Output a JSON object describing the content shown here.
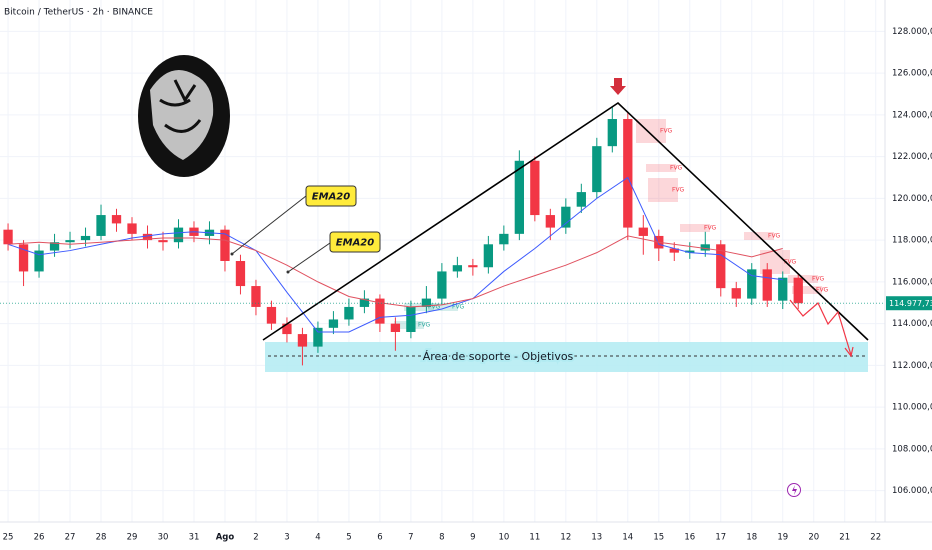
{
  "chart_data": {
    "type": "candlestick",
    "title": "Bitcoin / TetherUS · 2h · BINANCE",
    "x": [
      0,
      0.5,
      1,
      1.5,
      2,
      2.5,
      3,
      3.5,
      4,
      4.5,
      5,
      5.5,
      6,
      6.5,
      7,
      7.5,
      8,
      8.5,
      9,
      9.5,
      10,
      10.5,
      11,
      11.5,
      12,
      12.5,
      13,
      13.5,
      14,
      14.5,
      15,
      15.5,
      16,
      16.5,
      17,
      17.5,
      18,
      18.5,
      19,
      19.5,
      20,
      20.5,
      21,
      21.5,
      22,
      22.5,
      23,
      23.5,
      24,
      24.5,
      25,
      25.5
    ],
    "open": [
      118500,
      117800,
      116500,
      117500,
      117900,
      118000,
      118200,
      119200,
      118800,
      118300,
      118000,
      117900,
      118600,
      118200,
      118500,
      117000,
      115800,
      114800,
      114000,
      113500,
      112900,
      113800,
      114200,
      114800,
      115200,
      114000,
      113600,
      114800,
      115200,
      116500,
      116800,
      116700,
      117800,
      118300,
      121800,
      119200,
      118600,
      119600,
      120300,
      122500,
      123800,
      118600,
      118200,
      117600,
      117400,
      117500,
      117800,
      115700,
      115200,
      116600,
      115100,
      116200
    ],
    "high": [
      118800,
      118000,
      117800,
      118300,
      118400,
      118600,
      119700,
      119500,
      119100,
      118700,
      118400,
      119000,
      118900,
      118900,
      118700,
      117300,
      116100,
      115100,
      114300,
      113800,
      114100,
      114600,
      115200,
      115600,
      115400,
      114300,
      115100,
      115800,
      116900,
      117200,
      117100,
      118200,
      118700,
      122300,
      122000,
      119500,
      120000,
      120700,
      122900,
      124400,
      124100,
      119200,
      118500,
      117900,
      117900,
      118400,
      118000,
      116000,
      116900,
      116900,
      116500,
      116400
    ],
    "low": [
      117500,
      115800,
      116200,
      117200,
      117600,
      117700,
      118000,
      118400,
      118000,
      117600,
      117500,
      117600,
      117900,
      117800,
      116500,
      115400,
      114400,
      113700,
      113100,
      112000,
      112600,
      113500,
      113900,
      114500,
      113600,
      112700,
      113300,
      114500,
      114900,
      116200,
      116300,
      116400,
      117500,
      118000,
      118900,
      118000,
      118300,
      119300,
      120000,
      122200,
      118000,
      117300,
      117000,
      117000,
      117100,
      117200,
      115300,
      114800,
      114900,
      114800,
      114700,
      114700
    ],
    "close": [
      117800,
      116500,
      117500,
      117900,
      118000,
      118200,
      119200,
      118800,
      118300,
      118000,
      117900,
      118600,
      118200,
      118500,
      117000,
      115800,
      114800,
      114000,
      113500,
      112900,
      113800,
      114200,
      114800,
      115200,
      114000,
      113600,
      114800,
      115200,
      116500,
      116800,
      116700,
      117800,
      118300,
      121800,
      119200,
      118600,
      119600,
      120300,
      122500,
      123800,
      118600,
      118200,
      117600,
      117400,
      117500,
      117800,
      115700,
      115200,
      116600,
      115100,
      116200,
      114977.73
    ],
    "up_color": "#089981",
    "down_color": "#f23645",
    "lines": [
      {
        "color": "#3d5afe",
        "x": [
          0,
          1,
          2,
          3,
          4,
          5,
          6,
          7,
          8,
          9,
          10,
          11,
          12,
          13,
          14,
          15,
          16,
          17,
          18,
          19,
          20,
          21,
          22,
          23,
          24,
          25
        ],
        "values": [
          117800,
          117300,
          117500,
          117800,
          118100,
          118300,
          118400,
          118300,
          117500,
          115500,
          113600,
          113600,
          114300,
          114400,
          114700,
          115200,
          116500,
          117600,
          118800,
          120000,
          121000,
          117800,
          117400,
          117300,
          116300,
          116100
        ]
      },
      {
        "color": "#e05260",
        "x": [
          0,
          1,
          2,
          3,
          4,
          5,
          6,
          7,
          8,
          9,
          10,
          11,
          12,
          13,
          14,
          15,
          16,
          17,
          18,
          19,
          20,
          21,
          22,
          23,
          24,
          25
        ],
        "values": [
          117800,
          117900,
          117800,
          117900,
          118000,
          118100,
          118100,
          118000,
          117500,
          116800,
          116000,
          115300,
          115000,
          114800,
          114900,
          115200,
          115800,
          116300,
          116800,
          117400,
          118200,
          117900,
          117700,
          117500,
          117200,
          117600
        ]
      }
    ],
    "last_price": {
      "value": 114977.73,
      "label": "114.977,73"
    },
    "xlim": [
      -0.26,
      28.3
    ],
    "ylim": [
      104500,
      129500
    ],
    "xticks": [
      {
        "value": 0,
        "label": "25"
      },
      {
        "value": 1,
        "label": "26"
      },
      {
        "value": 2,
        "label": "27"
      },
      {
        "value": 3,
        "label": "28"
      },
      {
        "value": 4,
        "label": "29"
      },
      {
        "value": 5,
        "label": "30"
      },
      {
        "value": 6,
        "label": "31"
      },
      {
        "value": 7,
        "label": "Ago"
      },
      {
        "value": 8,
        "label": "2"
      },
      {
        "value": 9,
        "label": "3"
      },
      {
        "value": 10,
        "label": "4"
      },
      {
        "value": 11,
        "label": "5"
      },
      {
        "value": 12,
        "label": "6"
      },
      {
        "value": 13,
        "label": "7"
      },
      {
        "value": 14,
        "label": "8"
      },
      {
        "value": 15,
        "label": "9"
      },
      {
        "value": 16,
        "label": "10"
      },
      {
        "value": 17,
        "label": "11"
      },
      {
        "value": 18,
        "label": "12"
      },
      {
        "value": 19,
        "label": "13"
      },
      {
        "value": 20,
        "label": "14"
      },
      {
        "value": 21,
        "label": "15"
      },
      {
        "value": 22,
        "label": "16"
      },
      {
        "value": 23,
        "label": "17"
      },
      {
        "value": 24,
        "label": "18"
      },
      {
        "value": 25,
        "label": "19"
      },
      {
        "value": 26,
        "label": "20"
      },
      {
        "value": 27,
        "label": "21"
      },
      {
        "value": 28,
        "label": "22"
      }
    ],
    "yticks": [
      {
        "value": 106000,
        "label": "106.000,00"
      },
      {
        "value": 108000,
        "label": "108.000,00"
      },
      {
        "value": 110000,
        "label": "110.000,00"
      },
      {
        "value": 112000,
        "label": "112.000,00"
      },
      {
        "value": 114000,
        "label": "114.000,00"
      },
      {
        "value": 116000,
        "label": "116.000,00"
      },
      {
        "value": 118000,
        "label": "118.000,00"
      },
      {
        "value": 120000,
        "label": "120.000,00"
      },
      {
        "value": 122000,
        "label": "122.000,00"
      },
      {
        "value": 124000,
        "label": "124.000,00"
      },
      {
        "value": 126000,
        "label": "126.000,00"
      },
      {
        "value": 128000,
        "label": "128.000,00"
      }
    ],
    "grid": true,
    "support_zone": "Área de soporte - Objetivos",
    "ema_labels": [
      "EMA20",
      "EMA20"
    ],
    "fvg_labels": [
      "FVG",
      "FVG",
      "FVG",
      "FVG",
      "FVG",
      "FVG",
      "FVG",
      "FVG",
      "FVG",
      "FVG",
      "FVG"
    ]
  }
}
